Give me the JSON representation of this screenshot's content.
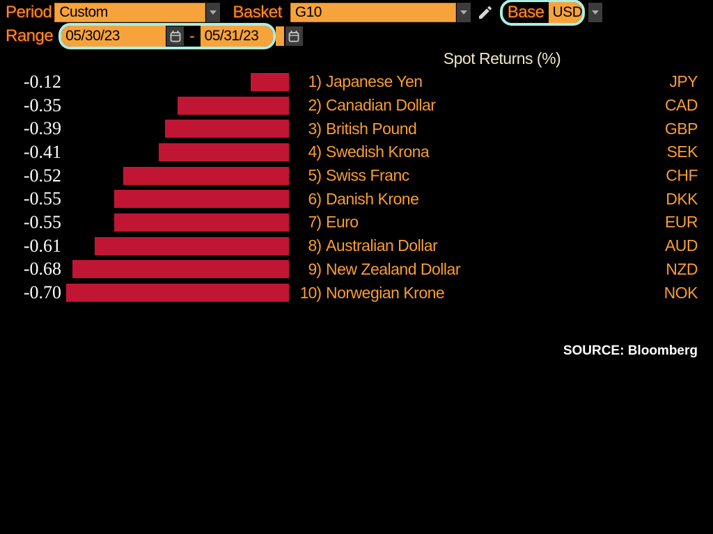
{
  "toolbar": {
    "period_label": "Period",
    "period_value": "Custom",
    "basket_label": "Basket",
    "basket_value": "G10",
    "base_label": "Base",
    "base_value": "USD",
    "range_label": "Range",
    "range_start": "05/30/23",
    "range_separator": "-",
    "range_end": "05/31/23"
  },
  "chart_data": {
    "type": "bar",
    "orientation": "horizontal",
    "title": "Spot Returns (%)",
    "categories": [
      "Japanese Yen",
      "Canadian Dollar",
      "British Pound",
      "Swedish Krona",
      "Swiss Franc",
      "Danish Krone",
      "Euro",
      "Australian Dollar",
      "New Zealand Dollar",
      "Norwegian Krone"
    ],
    "values": [
      -0.12,
      -0.35,
      -0.39,
      -0.41,
      -0.52,
      -0.55,
      -0.55,
      -0.61,
      -0.68,
      -0.7
    ],
    "value_labels": [
      "-0.12",
      "-0.35",
      "-0.39",
      "-0.41",
      "-0.52",
      "-0.55",
      "-0.55",
      "-0.61",
      "-0.68",
      "-0.70"
    ],
    "rank_labels": [
      "1)",
      "2)",
      "3)",
      "4)",
      "5)",
      "6)",
      "7)",
      "8)",
      "9)",
      "10)"
    ],
    "tickers": [
      "JPY",
      "CAD",
      "GBP",
      "SEK",
      "CHF",
      "DKK",
      "EUR",
      "AUD",
      "NZD",
      "NOK"
    ],
    "xlim": [
      -0.75,
      0
    ],
    "xlabel": "",
    "ylabel": "",
    "grid": false,
    "legend": false,
    "bar_color": "#C11633"
  },
  "source": "SOURCE: Bloomberg",
  "colors": {
    "background": "#000000",
    "amber_fill": "#F7A33C",
    "amber_text": "#F99D32",
    "label_text": "#F78F24",
    "title_text": "#F0E7C3",
    "value_text": "#FFFFFF",
    "bar": "#C11633",
    "button_bg": "#3C3C3C",
    "highlight_ring": "#A9EFE3"
  }
}
